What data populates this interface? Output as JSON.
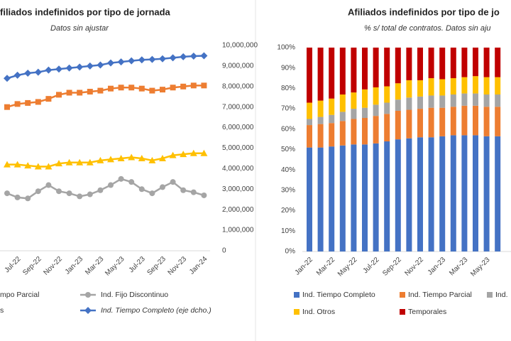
{
  "chart_data": [
    {
      "type": "line",
      "title": "filiados indefinidos por tipo de jornada",
      "subtitle": "Datos sin ajustar",
      "categories": [
        null,
        "Jul-22",
        null,
        "Sep-22",
        null,
        "Nov-22",
        null,
        "Jan-23",
        null,
        "Mar-23",
        null,
        "May-23",
        null,
        "Jul-23",
        null,
        "Sep-23",
        null,
        "Nov-23",
        null,
        "Jan-24"
      ],
      "y2lim": [
        0,
        10000000
      ],
      "y2ticks": [
        0,
        {
          "value": 1000000,
          "label": "1,000,000"
        },
        {
          "value": 2000000,
          "label": "2,000,000"
        },
        {
          "value": 3000000,
          "label": "3,000,000"
        },
        {
          "value": 4000000,
          "label": "4,000,000"
        },
        {
          "value": 5000000,
          "label": "5,000,000"
        },
        {
          "value": 6000000,
          "label": "6,000,000"
        },
        {
          "value": 7000000,
          "label": "7,000,000"
        },
        {
          "value": 8000000,
          "label": "8,000,000"
        },
        {
          "value": 9000000,
          "label": "9,000,000"
        },
        {
          "value": 10000000,
          "label": "10,000,000"
        }
      ],
      "grid": false,
      "series": [
        {
          "name": "mpo Parcial",
          "color": "#ed7d31",
          "marker": "square",
          "axis": "y2",
          "values": [
            7000000,
            7150000,
            7200000,
            7250000,
            7400000,
            7600000,
            7700000,
            7700000,
            7750000,
            7800000,
            7900000,
            7950000,
            7950000,
            7900000,
            7800000,
            7850000,
            7950000,
            8000000,
            8050000,
            8050000
          ]
        },
        {
          "name": "Ind. Fijo Discontinuo",
          "color": "#a5a5a5",
          "marker": "circle",
          "axis": "y2",
          "values": [
            2800000,
            2600000,
            2550000,
            2900000,
            3200000,
            2900000,
            2800000,
            2650000,
            2750000,
            2950000,
            3200000,
            3500000,
            3350000,
            3000000,
            2800000,
            3100000,
            3350000,
            2950000,
            2850000,
            2700000
          ]
        },
        {
          "name": "s",
          "color": "#ffc000",
          "marker": "triangle",
          "axis": "y2",
          "values": [
            4200000,
            4200000,
            4150000,
            4100000,
            4100000,
            4250000,
            4300000,
            4300000,
            4300000,
            4400000,
            4450000,
            4500000,
            4550000,
            4500000,
            4400000,
            4500000,
            4650000,
            4700000,
            4750000,
            4750000
          ]
        },
        {
          "name": "Ind. Tiempo Completo (eje dcho.)",
          "color": "#4472c4",
          "marker": "diamond",
          "axis": "y2",
          "values": [
            8400000,
            8550000,
            8650000,
            8700000,
            8800000,
            8850000,
            8900000,
            8950000,
            9000000,
            9050000,
            9150000,
            9200000,
            9250000,
            9300000,
            9320000,
            9350000,
            9400000,
            9450000,
            9480000,
            9500000
          ]
        }
      ]
    },
    {
      "type": "bar",
      "stacked": true,
      "title": "Afiliados indefinidos por tipo de jo",
      "subtitle": "% s/ total de contratos. Datos sin aju",
      "categories": [
        "Jan-22",
        null,
        "Mar-22",
        null,
        "May-22",
        null,
        "Jul-22",
        null,
        "Sep-22",
        null,
        "Nov-22",
        null,
        "Jan-23",
        null,
        "Mar-23",
        null,
        "May-23",
        null
      ],
      "ylim": [
        0,
        100
      ],
      "yticks": [
        {
          "value": 0,
          "label": "0%"
        },
        {
          "value": 10,
          "label": "10%"
        },
        {
          "value": 20,
          "label": "20%"
        },
        {
          "value": 30,
          "label": "30%"
        },
        {
          "value": 40,
          "label": "40%"
        },
        {
          "value": 50,
          "label": "50%"
        },
        {
          "value": 60,
          "label": "60%"
        },
        {
          "value": 70,
          "label": "70%"
        },
        {
          "value": 80,
          "label": "80%"
        },
        {
          "value": 90,
          "label": "90%"
        },
        {
          "value": 100,
          "label": "100%"
        }
      ],
      "grid": false,
      "series": [
        {
          "name": "Ind. Tiempo Completo",
          "color": "#4472c4",
          "values": [
            51,
            51,
            51.5,
            52,
            52.5,
            52.5,
            53,
            54,
            55,
            55.5,
            56,
            56,
            56.5,
            57,
            57,
            57,
            56.5,
            56.5
          ]
        },
        {
          "name": "Ind. Tiempo Parcial",
          "color": "#ed7d31",
          "values": [
            11,
            11.5,
            11.5,
            12,
            12.5,
            13,
            13.5,
            13.5,
            14,
            14,
            14,
            14.5,
            14,
            14,
            14.5,
            14.5,
            14.5,
            14.5
          ]
        },
        {
          "name": "Ind.",
          "color": "#a5a5a5",
          "values": [
            3,
            3.5,
            4,
            4.5,
            5,
            5,
            5.5,
            5.5,
            5.5,
            6,
            6,
            6,
            6,
            6,
            6,
            6,
            6,
            6
          ]
        },
        {
          "name": "Ind. Otros",
          "color": "#ffc000",
          "values": [
            8,
            8,
            8,
            8.5,
            8,
            9,
            8.5,
            8,
            8,
            8.5,
            8,
            8.5,
            8,
            8,
            8,
            8.5,
            8.5,
            8.5
          ]
        },
        {
          "name": "Temporales",
          "color": "#c00000",
          "values": [
            27,
            26,
            25,
            23,
            22,
            20.5,
            19.5,
            19,
            17.5,
            16,
            16,
            15,
            15.5,
            15,
            14.5,
            14,
            14.5,
            14.5
          ]
        }
      ]
    }
  ]
}
